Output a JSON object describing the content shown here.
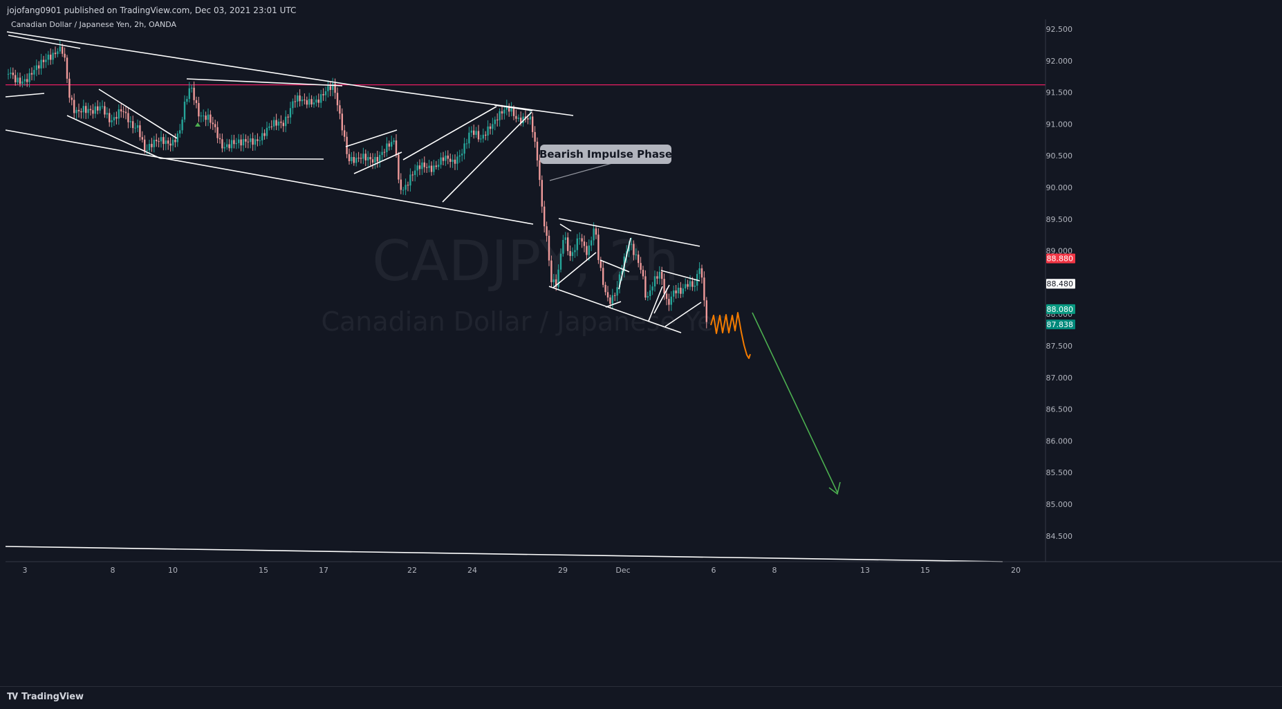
{
  "header": {
    "published": "jojofang0901 published on TradingView.com, Dec 03, 2021 23:01 UTC"
  },
  "footer": {
    "logo_text": "TradingView"
  },
  "colors": {
    "background": "#131722",
    "bull": "#26a69a",
    "bear": "#ef9a9a",
    "level": "#e91e63",
    "forecast": "#f57c00",
    "target": "#4caf50",
    "trendline": "#ffffff"
  },
  "chart_data": {
    "type": "candlestick",
    "symbol_line": "Canadian Dollar / Japanese Yen, 2h, OANDA",
    "watermark": {
      "symbol": "CADJPY, 2h",
      "description": "Canadian Dollar / Japanese Yen"
    },
    "y_axis": {
      "range": [
        84.1,
        92.6
      ],
      "ticks": [
        "92.500",
        "92.000",
        "91.500",
        "91.000",
        "90.500",
        "90.000",
        "89.500",
        "89.000",
        "88.500",
        "88.000",
        "87.500",
        "87.000",
        "86.500",
        "86.000",
        "85.500",
        "85.000",
        "84.500"
      ]
    },
    "x_axis": {
      "ticks": [
        "3",
        "8",
        "10",
        "15",
        "17",
        "22",
        "24",
        "29",
        "Dec",
        "6",
        "8",
        "13",
        "15",
        "20"
      ]
    },
    "price_labels": [
      {
        "value": "88.880",
        "price": 88.88,
        "kind": "red"
      },
      {
        "value": "88.480",
        "price": 88.48,
        "kind": "white"
      },
      {
        "value": "88.080",
        "price": 88.08,
        "kind": "teal"
      },
      {
        "value": "87.838",
        "price": 87.838,
        "kind": "teal2"
      }
    ],
    "horizontal_level": 91.62,
    "annotation": "Bearish Impulse Phase",
    "price_path": [
      [
        0,
        91.55
      ],
      [
        8,
        91.8
      ],
      [
        22,
        91.7
      ],
      [
        40,
        91.75
      ],
      [
        55,
        91.85
      ],
      [
        70,
        92.1
      ],
      [
        85,
        92.2
      ],
      [
        92,
        92.1
      ],
      [
        100,
        91.4
      ],
      [
        108,
        91.2
      ],
      [
        120,
        91.3
      ],
      [
        135,
        91.15
      ],
      [
        148,
        91.25
      ],
      [
        160,
        91.1
      ],
      [
        175,
        91.2
      ],
      [
        190,
        90.95
      ],
      [
        200,
        91.0
      ],
      [
        210,
        90.6
      ],
      [
        222,
        90.65
      ],
      [
        235,
        90.75
      ],
      [
        250,
        90.75
      ],
      [
        260,
        90.85
      ],
      [
        268,
        91.3
      ],
      [
        276,
        91.6
      ],
      [
        288,
        91.2
      ],
      [
        300,
        91.1
      ],
      [
        312,
        90.85
      ],
      [
        320,
        90.65
      ],
      [
        335,
        90.75
      ],
      [
        350,
        90.65
      ],
      [
        365,
        90.75
      ],
      [
        380,
        90.85
      ],
      [
        395,
        90.95
      ],
      [
        410,
        91.05
      ],
      [
        425,
        91.4
      ],
      [
        440,
        91.3
      ],
      [
        455,
        91.4
      ],
      [
        470,
        91.5
      ],
      [
        483,
        91.55
      ],
      [
        490,
        91.2
      ],
      [
        497,
        90.9
      ],
      [
        503,
        90.5
      ],
      [
        515,
        90.4
      ],
      [
        530,
        90.45
      ],
      [
        545,
        90.5
      ],
      [
        560,
        90.6
      ],
      [
        572,
        90.7
      ],
      [
        576,
        90.1
      ],
      [
        582,
        90.0
      ],
      [
        595,
        90.2
      ],
      [
        610,
        90.3
      ],
      [
        625,
        90.35
      ],
      [
        640,
        90.45
      ],
      [
        655,
        90.35
      ],
      [
        665,
        90.55
      ],
      [
        680,
        90.9
      ],
      [
        695,
        90.7
      ],
      [
        708,
        91.0
      ],
      [
        720,
        91.15
      ],
      [
        735,
        91.2
      ],
      [
        748,
        91.1
      ],
      [
        760,
        91.15
      ],
      [
        768,
        91.05
      ],
      [
        774,
        90.6
      ],
      [
        780,
        90.15
      ],
      [
        784,
        89.6
      ],
      [
        790,
        89.3
      ],
      [
        797,
        88.6
      ],
      [
        805,
        88.5
      ],
      [
        815,
        89.2
      ],
      [
        825,
        88.85
      ],
      [
        838,
        89.3
      ],
      [
        850,
        88.95
      ],
      [
        860,
        89.35
      ],
      [
        866,
        88.8
      ],
      [
        872,
        88.5
      ],
      [
        880,
        88.25
      ],
      [
        890,
        88.35
      ],
      [
        900,
        88.7
      ],
      [
        910,
        89.1
      ],
      [
        920,
        88.95
      ],
      [
        928,
        88.75
      ],
      [
        935,
        88.2
      ],
      [
        945,
        88.45
      ],
      [
        955,
        88.65
      ],
      [
        965,
        88.2
      ],
      [
        975,
        88.4
      ],
      [
        985,
        88.3
      ],
      [
        995,
        88.45
      ],
      [
        1005,
        88.5
      ],
      [
        1012,
        88.85
      ],
      [
        1018,
        88.3
      ],
      [
        1022,
        87.85
      ]
    ],
    "trendlines": [
      [
        [
          10,
          46
        ],
        [
          517,
          124
        ]
      ],
      [
        [
          517,
          124
        ],
        [
          829,
          167
        ]
      ],
      [
        [
          8,
          188
        ],
        [
          771,
          324
        ]
      ],
      [
        [
          12,
          51
        ],
        [
          116,
          70
        ]
      ],
      [
        [
          8,
          140
        ],
        [
          64,
          135
        ]
      ],
      [
        [
          143,
          129
        ],
        [
          256,
          200
        ]
      ],
      [
        [
          97,
          167
        ],
        [
          232,
          229
        ]
      ],
      [
        [
          232,
          229
        ],
        [
          468,
          230
        ]
      ],
      [
        [
          270,
          114
        ],
        [
          495,
          124
        ]
      ],
      [
        [
          500,
          212
        ],
        [
          574,
          188
        ]
      ],
      [
        [
          512,
          251
        ],
        [
          581,
          220
        ]
      ],
      [
        [
          583,
          231
        ],
        [
          718,
          154
        ]
      ],
      [
        [
          640,
          292
        ],
        [
          769,
          162
        ]
      ],
      [
        [
          715,
          152
        ],
        [
          770,
          160
        ]
      ],
      [
        [
          808,
          316
        ],
        [
          1012,
          356
        ]
      ],
      [
        [
          794,
          414
        ],
        [
          985,
          481
        ]
      ],
      [
        [
          800,
          416
        ],
        [
          862,
          365
        ]
      ],
      [
        [
          868,
          376
        ],
        [
          910,
          393
        ]
      ],
      [
        [
          876,
          444
        ],
        [
          898,
          436
        ]
      ],
      [
        [
          895,
          418
        ],
        [
          912,
          344
        ]
      ],
      [
        [
          810,
          324
        ],
        [
          826,
          334
        ]
      ],
      [
        [
          938,
          464
        ],
        [
          958,
          414
        ]
      ],
      [
        [
          956,
          391
        ],
        [
          1012,
          406
        ]
      ],
      [
        [
          962,
          472
        ],
        [
          1014,
          437
        ]
      ],
      [
        [
          946,
          453
        ],
        [
          968,
          412
        ]
      ]
    ],
    "forecast": [
      [
        1028,
        470
      ],
      [
        1032,
        456
      ],
      [
        1036,
        482
      ],
      [
        1041,
        456
      ],
      [
        1045,
        481
      ],
      [
        1050,
        455
      ],
      [
        1054,
        481
      ],
      [
        1059,
        456
      ],
      [
        1063,
        478
      ],
      [
        1067,
        452
      ],
      [
        1072,
        480
      ],
      [
        1076,
        499
      ],
      [
        1080,
        513
      ],
      [
        1083,
        518
      ],
      [
        1085,
        512
      ]
    ],
    "target_arrow": [
      [
        1088,
        452
      ],
      [
        1211,
        712
      ]
    ]
  }
}
